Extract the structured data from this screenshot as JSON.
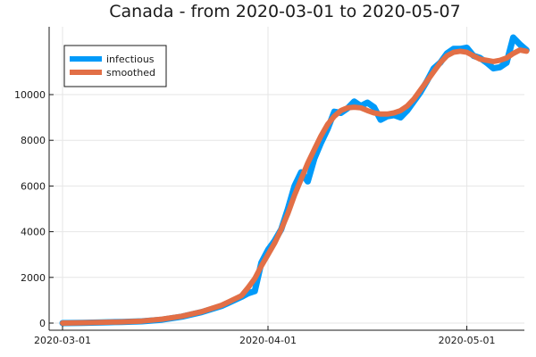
{
  "chart_data": {
    "type": "line",
    "title": "Canada - from 2020-03-01 to 2020-05-07",
    "xlabel": "",
    "ylabel": "",
    "x_start": "2020-03-01",
    "x_end": "2020-05-07",
    "x_ticks": [
      "2020-03-01",
      "2020-04-01",
      "2020-05-01"
    ],
    "ylim": [
      -300,
      13000
    ],
    "y_ticks": [
      0,
      2000,
      4000,
      6000,
      8000,
      10000
    ],
    "grid": true,
    "legend_position": "top-left",
    "series": [
      {
        "name": "infectious",
        "color": "#009AF9",
        "points": [
          [
            "2020-03-01",
            0
          ],
          [
            "2020-03-04",
            10
          ],
          [
            "2020-03-07",
            30
          ],
          [
            "2020-03-10",
            50
          ],
          [
            "2020-03-13",
            80
          ],
          [
            "2020-03-16",
            150
          ],
          [
            "2020-03-19",
            280
          ],
          [
            "2020-03-22",
            480
          ],
          [
            "2020-03-25",
            750
          ],
          [
            "2020-03-28",
            1150
          ],
          [
            "2020-03-29",
            1300
          ],
          [
            "2020-03-30",
            1400
          ],
          [
            "2020-03-31",
            2650
          ],
          [
            "2020-04-01",
            3200
          ],
          [
            "2020-04-02",
            3600
          ],
          [
            "2020-04-03",
            4100
          ],
          [
            "2020-04-04",
            5000
          ],
          [
            "2020-04-05",
            6000
          ],
          [
            "2020-04-06",
            6600
          ],
          [
            "2020-04-07",
            6200
          ],
          [
            "2020-04-08",
            7200
          ],
          [
            "2020-04-09",
            7900
          ],
          [
            "2020-04-10",
            8500
          ],
          [
            "2020-04-11",
            9250
          ],
          [
            "2020-04-12",
            9200
          ],
          [
            "2020-04-13",
            9400
          ],
          [
            "2020-04-14",
            9700
          ],
          [
            "2020-04-15",
            9500
          ],
          [
            "2020-04-16",
            9650
          ],
          [
            "2020-04-17",
            9450
          ],
          [
            "2020-04-18",
            8900
          ],
          [
            "2020-04-19",
            9050
          ],
          [
            "2020-04-20",
            9100
          ],
          [
            "2020-04-21",
            9000
          ],
          [
            "2020-04-22",
            9300
          ],
          [
            "2020-04-23",
            9700
          ],
          [
            "2020-04-24",
            10100
          ],
          [
            "2020-04-25",
            10600
          ],
          [
            "2020-04-26",
            11150
          ],
          [
            "2020-04-27",
            11400
          ],
          [
            "2020-04-28",
            11800
          ],
          [
            "2020-04-29",
            12000
          ],
          [
            "2020-04-30",
            12000
          ],
          [
            "2020-05-01",
            12050
          ],
          [
            "2020-05-02",
            11700
          ],
          [
            "2020-05-03",
            11600
          ],
          [
            "2020-05-04",
            11400
          ],
          [
            "2020-05-05",
            11150
          ],
          [
            "2020-05-06",
            11200
          ],
          [
            "2020-05-07",
            11400
          ],
          [
            "2020-05-08",
            12500
          ],
          [
            "2020-05-09",
            12200
          ],
          [
            "2020-05-10",
            11950
          ]
        ]
      },
      {
        "name": "smoothed",
        "color": "#E26F46",
        "points": [
          [
            "2020-03-01",
            0
          ],
          [
            "2020-03-04",
            15
          ],
          [
            "2020-03-07",
            35
          ],
          [
            "2020-03-10",
            55
          ],
          [
            "2020-03-13",
            90
          ],
          [
            "2020-03-16",
            170
          ],
          [
            "2020-03-19",
            300
          ],
          [
            "2020-03-22",
            500
          ],
          [
            "2020-03-25",
            780
          ],
          [
            "2020-03-28",
            1200
          ],
          [
            "2020-03-29",
            1550
          ],
          [
            "2020-03-30",
            1950
          ],
          [
            "2020-03-31",
            2500
          ],
          [
            "2020-04-01",
            3000
          ],
          [
            "2020-04-02",
            3500
          ],
          [
            "2020-04-03",
            4100
          ],
          [
            "2020-04-04",
            4800
          ],
          [
            "2020-04-05",
            5600
          ],
          [
            "2020-04-06",
            6300
          ],
          [
            "2020-04-07",
            7000
          ],
          [
            "2020-04-08",
            7600
          ],
          [
            "2020-04-09",
            8200
          ],
          [
            "2020-04-10",
            8700
          ],
          [
            "2020-04-11",
            9050
          ],
          [
            "2020-04-12",
            9300
          ],
          [
            "2020-04-13",
            9420
          ],
          [
            "2020-04-14",
            9450
          ],
          [
            "2020-04-15",
            9420
          ],
          [
            "2020-04-16",
            9300
          ],
          [
            "2020-04-17",
            9200
          ],
          [
            "2020-04-18",
            9150
          ],
          [
            "2020-04-19",
            9150
          ],
          [
            "2020-04-20",
            9200
          ],
          [
            "2020-04-21",
            9300
          ],
          [
            "2020-04-22",
            9500
          ],
          [
            "2020-04-23",
            9800
          ],
          [
            "2020-04-24",
            10200
          ],
          [
            "2020-04-25",
            10600
          ],
          [
            "2020-04-26",
            11000
          ],
          [
            "2020-04-27",
            11400
          ],
          [
            "2020-04-28",
            11700
          ],
          [
            "2020-04-29",
            11850
          ],
          [
            "2020-04-30",
            11900
          ],
          [
            "2020-05-01",
            11850
          ],
          [
            "2020-05-02",
            11700
          ],
          [
            "2020-05-03",
            11550
          ],
          [
            "2020-05-04",
            11500
          ],
          [
            "2020-05-05",
            11450
          ],
          [
            "2020-05-06",
            11500
          ],
          [
            "2020-05-07",
            11600
          ],
          [
            "2020-05-08",
            11800
          ],
          [
            "2020-05-09",
            11950
          ],
          [
            "2020-05-10",
            11900
          ]
        ]
      }
    ]
  }
}
